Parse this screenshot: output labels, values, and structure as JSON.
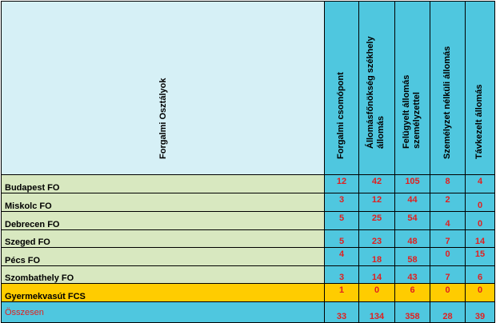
{
  "header": {
    "row_header": "Forgalmi Osztályok",
    "columns": [
      [
        "Forgalmi csomópont"
      ],
      [
        "Állomásfőnökség székhely",
        "állomás"
      ],
      [
        "Felügyelt állomás",
        "személyzettel"
      ],
      [
        "Személyzet nélküli állomás"
      ],
      [
        "Távkezelt állomás"
      ]
    ]
  },
  "rows": [
    {
      "name": "Budapest FO",
      "values": [
        "12",
        "42",
        "105",
        "8",
        "4"
      ]
    },
    {
      "name": "Miskolc FO",
      "values": [
        "3",
        "12",
        "44",
        "2",
        "0"
      ]
    },
    {
      "name": "Debrecen FO",
      "values": [
        "5",
        "25",
        "54",
        "4",
        "0"
      ]
    },
    {
      "name": "Szeged FO",
      "values": [
        "5",
        "23",
        "48",
        "7",
        "14"
      ]
    },
    {
      "name": "Pécs FO",
      "values": [
        "4",
        "18",
        "58",
        "0",
        "15"
      ]
    },
    {
      "name": "Szombathely FO",
      "values": [
        "3",
        "14",
        "43",
        "7",
        "6"
      ]
    },
    {
      "name": "Gyermekvasút FCS",
      "values": [
        "1",
        "0",
        "6",
        "0",
        "0"
      ]
    }
  ],
  "total": {
    "name": "Összesen",
    "values": [
      "33",
      "134",
      "358",
      "28",
      "39"
    ]
  },
  "colors": {
    "header_label_bg": "#d6f0f6",
    "header_col_bg": "#4fc7df",
    "row_label_bg": "#d8e8c0",
    "highlight_row_bg": "#ffcc00",
    "number_color": "#e02020"
  }
}
